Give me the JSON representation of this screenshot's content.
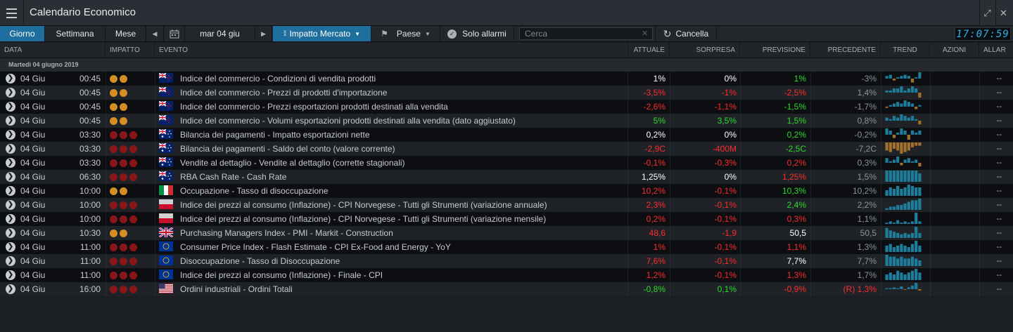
{
  "window": {
    "title": "Calendario Economico",
    "menu_icon": "hamburger-menu-icon",
    "expand_icon": "expand-icon",
    "close_icon": "close-icon"
  },
  "toolbar": {
    "views": [
      {
        "label": "Giorno",
        "active": true
      },
      {
        "label": "Settimana",
        "active": false
      },
      {
        "label": "Mese",
        "active": false
      }
    ],
    "prev_icon": "chevron-left-icon",
    "calendar_icon": "calendar-icon",
    "date_label": "mar 04 giu",
    "next_icon": "chevron-right-icon",
    "impact_filter_label": "Impatto Mercato",
    "country_filter_label": "Paese",
    "alarms_label": "Solo allarmi",
    "search_placeholder": "Cerca",
    "cancel_label": "Cancella",
    "clock": "17:07:59"
  },
  "columns": {
    "data": "DATA",
    "impatto": "IMPATTO",
    "evento": "EVENTO",
    "attuale": "ATTUALE",
    "sorpresa": "SORPRESA",
    "previsione": "PREVISIONE",
    "precedente": "PRECEDENTE",
    "trend": "TREND",
    "azioni": "AZIONI",
    "allarmi": "ALLAR"
  },
  "group_label": "Martedì 04 giugno 2019",
  "colors": {
    "impact_orange": "#d48f24",
    "impact_red": "#8a1717",
    "trend_up": "#1d7d9b",
    "trend_down": "#a36f2a",
    "negative": "#ff2b2b",
    "positive": "#2bdc2b",
    "accent": "#1f6f9e"
  },
  "events": [
    {
      "date": "04 Giu",
      "time": "00:45",
      "impact": 2,
      "flag": "new-zealand",
      "event": "Indice del commercio - Condizioni di vendita prodotti",
      "actual": "1%",
      "actual_tone": "white",
      "surprise": "0%",
      "surprise_tone": "white",
      "forecast": "1%",
      "forecast_tone": "green",
      "previous": "-3%",
      "previous_tone": "grey",
      "trend": [
        2,
        3,
        -2,
        1,
        2,
        3,
        2,
        -4,
        1,
        5
      ],
      "actions": "--"
    },
    {
      "date": "04 Giu",
      "time": "00:45",
      "impact": 2,
      "flag": "new-zealand",
      "event": "Indice del commercio - Prezzi di prodotti d'importazione",
      "actual": "-3,5%",
      "actual_tone": "red",
      "surprise": "-1%",
      "surprise_tone": "red",
      "forecast": "-2,5%",
      "forecast_tone": "red",
      "previous": "1,4%",
      "previous_tone": "grey",
      "trend": [
        1,
        1,
        2,
        2,
        3,
        1,
        2,
        3,
        2,
        -3
      ],
      "actions": "--"
    },
    {
      "date": "04 Giu",
      "time": "00:45",
      "impact": 2,
      "flag": "new-zealand",
      "event": "Indice del commercio - Prezzi esportazioni prodotti destinati alla vendita",
      "actual": "-2,6%",
      "actual_tone": "red",
      "surprise": "-1,1%",
      "surprise_tone": "red",
      "forecast": "-1,5%",
      "forecast_tone": "green",
      "previous": "-1,7%",
      "previous_tone": "grey",
      "trend": [
        -1,
        1,
        2,
        3,
        2,
        4,
        3,
        2,
        -2,
        1
      ],
      "actions": "--"
    },
    {
      "date": "04 Giu",
      "time": "00:45",
      "impact": 2,
      "flag": "new-zealand",
      "event": "Indice del commercio - Volumi esportazioni prodotti destinati alla vendita (dato aggiustato)",
      "actual": "5%",
      "actual_tone": "green",
      "surprise": "3,5%",
      "surprise_tone": "green",
      "forecast": "1,5%",
      "forecast_tone": "green",
      "previous": "0,8%",
      "previous_tone": "grey",
      "trend": [
        2,
        1,
        3,
        2,
        4,
        3,
        2,
        3,
        1,
        -3
      ],
      "actions": "--"
    },
    {
      "date": "04 Giu",
      "time": "03:30",
      "impact": 3,
      "flag": "australia",
      "event": "Bilancia dei pagamenti - Impatto esportazioni nette",
      "actual": "0,2%",
      "actual_tone": "white",
      "surprise": "0%",
      "surprise_tone": "white",
      "forecast": "0,2%",
      "forecast_tone": "green",
      "previous": "-0,2%",
      "previous_tone": "grey",
      "trend": [
        3,
        2,
        -2,
        1,
        3,
        2,
        -3,
        2,
        1,
        2
      ],
      "actions": "--"
    },
    {
      "date": "04 Giu",
      "time": "03:30",
      "impact": 3,
      "flag": "australia",
      "event": "Bilancia dei pagamenti - Saldo del conto (valore corrente)",
      "actual": "-2,9C",
      "actual_tone": "red",
      "surprise": "-400M",
      "surprise_tone": "red",
      "forecast": "-2,5C",
      "forecast_tone": "green",
      "previous": "-7,2C",
      "previous_tone": "grey",
      "trend": [
        -5,
        -6,
        -4,
        -5,
        -7,
        -6,
        -5,
        -3,
        -2,
        -2
      ],
      "actions": "--"
    },
    {
      "date": "04 Giu",
      "time": "03:30",
      "impact": 3,
      "flag": "australia",
      "event": "Vendite al dettaglio - Vendite al dettaglio (corrette stagionali)",
      "actual": "-0,1%",
      "actual_tone": "red",
      "surprise": "-0,3%",
      "surprise_tone": "red",
      "forecast": "0,2%",
      "forecast_tone": "red",
      "previous": "0,3%",
      "previous_tone": "grey",
      "trend": [
        3,
        1,
        2,
        4,
        -2,
        2,
        3,
        1,
        2,
        -3
      ],
      "actions": "--"
    },
    {
      "date": "04 Giu",
      "time": "06:30",
      "impact": 3,
      "flag": "australia",
      "event": "RBA Cash Rate - Cash Rate",
      "actual": "1,25%",
      "actual_tone": "white",
      "surprise": "0%",
      "surprise_tone": "white",
      "forecast": "1,25%",
      "forecast_tone": "red",
      "previous": "1,5%",
      "previous_tone": "grey",
      "trend": [
        8,
        8,
        8,
        8,
        8,
        8,
        8,
        8,
        8,
        6
      ],
      "actions": "--"
    },
    {
      "date": "04 Giu",
      "time": "10:00",
      "impact": 2,
      "flag": "italy",
      "event": "Occupazione - Tasso di disoccupazione",
      "actual": "10,2%",
      "actual_tone": "red",
      "surprise": "-0,1%",
      "surprise_tone": "red",
      "forecast": "10,3%",
      "forecast_tone": "green",
      "previous": "10,2%",
      "previous_tone": "grey",
      "trend": [
        4,
        6,
        5,
        7,
        5,
        6,
        8,
        7,
        6,
        6
      ],
      "actions": "--"
    },
    {
      "date": "04 Giu",
      "time": "10:00",
      "impact": 3,
      "flag": "norway",
      "event": "Indice dei prezzi al consumo (Inflazione) - CPI Norvegese - Tutti gli Strumenti (variazione annuale)",
      "actual": "2,3%",
      "actual_tone": "red",
      "surprise": "-0,1%",
      "surprise_tone": "red",
      "forecast": "2,4%",
      "forecast_tone": "green",
      "previous": "2,2%",
      "previous_tone": "grey",
      "trend": [
        1,
        2,
        2,
        3,
        3,
        4,
        5,
        6,
        6,
        7
      ],
      "actions": "--"
    },
    {
      "date": "04 Giu",
      "time": "10:00",
      "impact": 3,
      "flag": "norway",
      "event": "Indice dei prezzi al consumo (Inflazione) - CPI Norvegese - Tutti gli Strumenti (variazione mensile)",
      "actual": "0,2%",
      "actual_tone": "red",
      "surprise": "-0,1%",
      "surprise_tone": "red",
      "forecast": "0,3%",
      "forecast_tone": "red",
      "previous": "1,1%",
      "previous_tone": "grey",
      "trend": [
        1,
        2,
        1,
        3,
        1,
        2,
        1,
        2,
        9,
        2
      ],
      "actions": "--"
    },
    {
      "date": "04 Giu",
      "time": "10:30",
      "impact": 2,
      "flag": "united-kingdom",
      "event": "Purchasing Managers Index - PMI - Markit - Construction",
      "actual": "48,6",
      "actual_tone": "red",
      "surprise": "-1,9",
      "surprise_tone": "red",
      "forecast": "50,5",
      "forecast_tone": "white",
      "previous": "50,5",
      "previous_tone": "grey",
      "trend": [
        8,
        6,
        5,
        4,
        3,
        4,
        3,
        4,
        9,
        4
      ],
      "actions": "--"
    },
    {
      "date": "04 Giu",
      "time": "11:00",
      "impact": 3,
      "flag": "european-union",
      "event": "Consumer Price Index - Flash Estimate - CPI Ex-Food and Energy - YoY",
      "actual": "1%",
      "actual_tone": "red",
      "surprise": "-0,1%",
      "surprise_tone": "red",
      "forecast": "1,1%",
      "forecast_tone": "red",
      "previous": "1,3%",
      "previous_tone": "grey",
      "trend": [
        4,
        5,
        3,
        4,
        5,
        4,
        3,
        5,
        7,
        4
      ],
      "actions": "--"
    },
    {
      "date": "04 Giu",
      "time": "11:00",
      "impact": 3,
      "flag": "european-union",
      "event": "Disoccupazione - Tasso di Disoccupazione",
      "actual": "7,6%",
      "actual_tone": "red",
      "surprise": "-0,1%",
      "surprise_tone": "red",
      "forecast": "7,7%",
      "forecast_tone": "white",
      "previous": "7,7%",
      "previous_tone": "grey",
      "trend": [
        6,
        5,
        5,
        4,
        5,
        4,
        4,
        5,
        4,
        3
      ],
      "actions": "--"
    },
    {
      "date": "04 Giu",
      "time": "11:00",
      "impact": 3,
      "flag": "european-union",
      "event": "Indice dei prezzi al consumo (Inflazione) - Finale - CPI",
      "actual": "1,2%",
      "actual_tone": "red",
      "surprise": "-0,1%",
      "surprise_tone": "red",
      "forecast": "1,3%",
      "forecast_tone": "red",
      "previous": "1,7%",
      "previous_tone": "grey",
      "trend": [
        3,
        4,
        3,
        5,
        4,
        3,
        4,
        5,
        6,
        4
      ],
      "actions": "--"
    },
    {
      "date": "04 Giu",
      "time": "16:00",
      "impact": 3,
      "flag": "united-states",
      "event": "Ordini industriali - Ordini Totali",
      "actual": "-0,8%",
      "actual_tone": "green",
      "surprise": "0,1%",
      "surprise_tone": "green",
      "forecast": "-0,9%",
      "forecast_tone": "red",
      "previous": "(R) 1,3%",
      "previous_tone": "red",
      "trend": [
        1,
        1,
        2,
        1,
        3,
        -1,
        2,
        4,
        7,
        -2
      ],
      "actions": "--"
    }
  ]
}
